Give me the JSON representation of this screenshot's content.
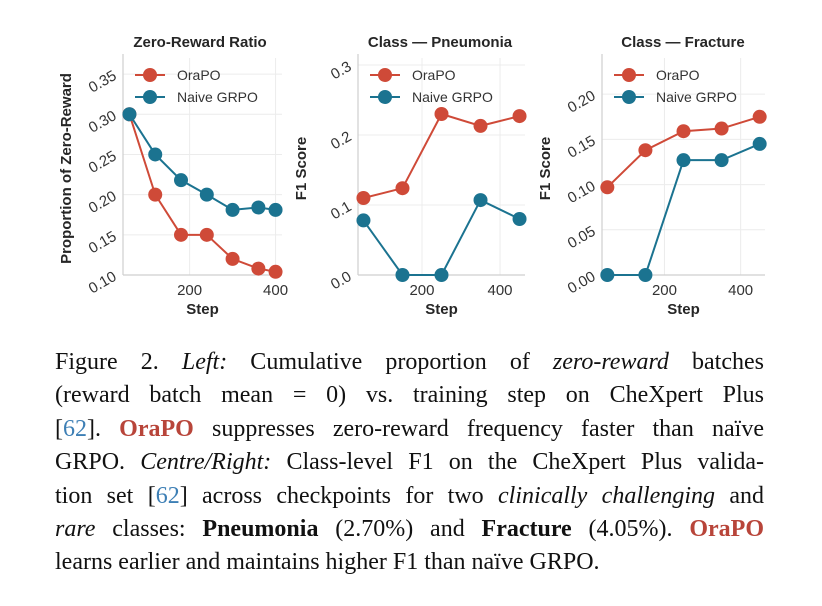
{
  "colors": {
    "orapo": "#cf4a38",
    "grpo": "#1b7390",
    "brand_text": "#b8453a",
    "ref_link": "#3d7fb5"
  },
  "chart_data": [
    {
      "type": "line",
      "title": "Zero-Reward Ratio",
      "xlabel": "Step",
      "ylabel": "Proportion of Zero-Reward",
      "xlim": [
        45,
        415
      ],
      "ylim": [
        0.1,
        0.37
      ],
      "xticks": [
        200,
        400
      ],
      "xtick_labels": [
        "200",
        "400"
      ],
      "yticks": [
        0.1,
        0.15,
        0.2,
        0.25,
        0.3,
        0.35
      ],
      "ytick_labels": [
        "0.10",
        "0.15",
        "0.20",
        "0.25",
        "0.30",
        "0.35"
      ],
      "grid": true,
      "legend": "upper-right",
      "x": [
        60,
        120,
        180,
        240,
        300,
        360,
        400
      ],
      "series": [
        {
          "name": "OraPO",
          "color_key": "orapo",
          "values": [
            0.3,
            0.2,
            0.15,
            0.15,
            0.12,
            0.108,
            0.104
          ]
        },
        {
          "name": "Naive GRPO",
          "color_key": "grpo",
          "values": [
            0.3,
            0.25,
            0.218,
            0.2,
            0.181,
            0.184,
            0.181
          ]
        }
      ]
    },
    {
      "type": "line",
      "title": "Class — Pneumonia",
      "xlabel": "Step",
      "ylabel": "F1 Score",
      "xlim": [
        36,
        464
      ],
      "ylim": [
        0.0,
        0.31
      ],
      "xticks": [
        200,
        400
      ],
      "xtick_labels": [
        "200",
        "400"
      ],
      "yticks": [
        0.0,
        0.1,
        0.2,
        0.3
      ],
      "ytick_labels": [
        "0.0",
        "0.1",
        "0.2",
        "0.3"
      ],
      "grid": true,
      "legend": "upper-right",
      "x": [
        50,
        150,
        250,
        350,
        450
      ],
      "series": [
        {
          "name": "OraPO",
          "color_key": "orapo",
          "values": [
            0.11,
            0.124,
            0.23,
            0.213,
            0.227
          ]
        },
        {
          "name": "Naive GRPO",
          "color_key": "grpo",
          "values": [
            0.078,
            0.0,
            0.0,
            0.107,
            0.08
          ]
        }
      ]
    },
    {
      "type": "line",
      "title": "Class — Fracture",
      "xlabel": "Step",
      "ylabel": "F1 Score",
      "xlim": [
        36,
        464
      ],
      "ylim": [
        0.0,
        0.24
      ],
      "xticks": [
        200,
        400
      ],
      "xtick_labels": [
        "200",
        "400"
      ],
      "yticks": [
        0.0,
        0.05,
        0.1,
        0.15,
        0.2
      ],
      "ytick_labels": [
        "0.00",
        "0.05",
        "0.10",
        "0.15",
        "0.20"
      ],
      "grid": true,
      "legend": "upper-right",
      "x": [
        50,
        150,
        250,
        350,
        450
      ],
      "series": [
        {
          "name": "OraPO",
          "color_key": "orapo",
          "values": [
            0.097,
            0.138,
            0.159,
            0.162,
            0.175
          ]
        },
        {
          "name": "Naive GRPO",
          "color_key": "grpo",
          "values": [
            0.0,
            0.0,
            0.127,
            0.127,
            0.145
          ]
        }
      ]
    }
  ],
  "caption": {
    "lines": [
      [
        {
          "t": "Figure 2.  ",
          "s": ""
        },
        {
          "t": "Left:",
          "s": "it"
        },
        {
          "t": "  Cumulative proportion of ",
          "s": ""
        },
        {
          "t": "zero-reward",
          "s": "it"
        },
        {
          "t": " batches",
          "s": ""
        }
      ],
      [
        {
          "t": "(reward batch mean = 0) vs.  training step on CheXpert Plus",
          "s": ""
        }
      ],
      [
        {
          "t": "[",
          "s": ""
        },
        {
          "t": "62",
          "s": "ref"
        },
        {
          "t": "]. ",
          "s": ""
        },
        {
          "t": "OraPO",
          "s": "brand"
        },
        {
          "t": " suppresses zero-reward frequency faster than naïve",
          "s": ""
        }
      ],
      [
        {
          "t": "GRPO. ",
          "s": ""
        },
        {
          "t": "Centre/Right:",
          "s": "it"
        },
        {
          "t": " Class-level F1 on the CheXpert Plus valida-",
          "s": ""
        }
      ],
      [
        {
          "t": "tion set [",
          "s": ""
        },
        {
          "t": "62",
          "s": "ref"
        },
        {
          "t": "] across checkpoints for two ",
          "s": ""
        },
        {
          "t": "clinically challenging",
          "s": "it"
        },
        {
          "t": " and",
          "s": ""
        }
      ],
      [
        {
          "t": "rare",
          "s": "it"
        },
        {
          "t": " classes: ",
          "s": ""
        },
        {
          "t": "Pneumonia",
          "s": "bd"
        },
        {
          "t": " (2.70%) and ",
          "s": ""
        },
        {
          "t": "Fracture",
          "s": "bd"
        },
        {
          "t": " (4.05%). ",
          "s": ""
        },
        {
          "t": "OraPO",
          "s": "brand"
        }
      ],
      [
        {
          "t": "learns earlier and maintains higher F1 than naïve GRPO.",
          "s": ""
        }
      ]
    ]
  }
}
